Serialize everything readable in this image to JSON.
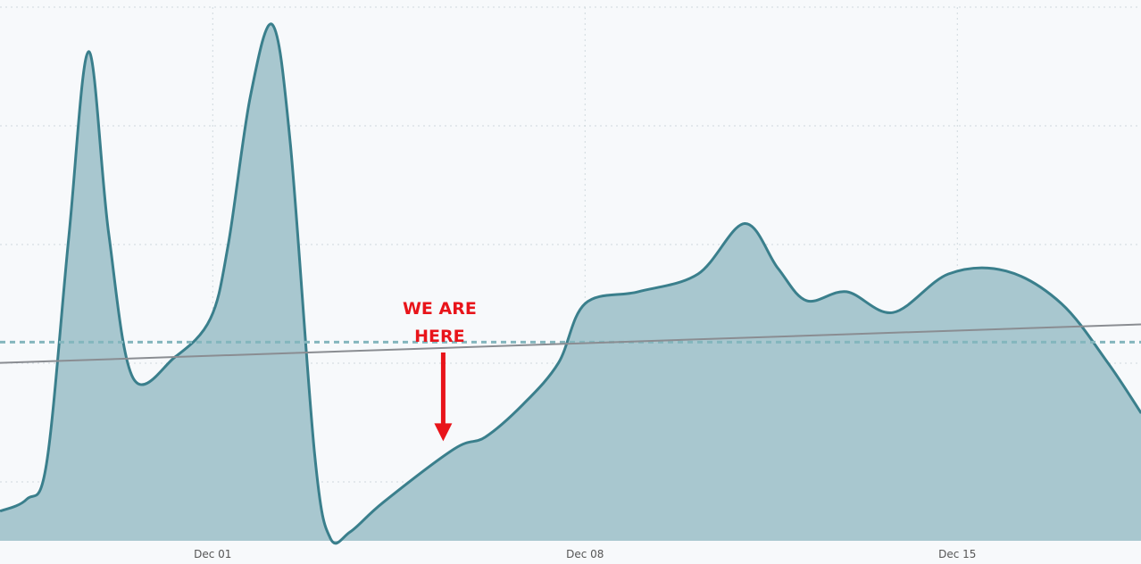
{
  "chart_data": {
    "type": "area",
    "title": "",
    "xlabel": "",
    "ylabel": "",
    "x_tick_labels": [
      "Dec 01",
      "Dec 08",
      "Dec 15"
    ],
    "y_tick_labels": [],
    "grid": true,
    "legend": "none",
    "series": [
      {
        "values": [
          {
            "x": "2019-11-27 00:00",
            "y": 10
          },
          {
            "x": "2019-11-27 12:00",
            "y": 14
          },
          {
            "x": "2019-11-27 21:00",
            "y": 26
          },
          {
            "x": "2019-11-28 07:00",
            "y": 102
          },
          {
            "x": "2019-11-28 16:00",
            "y": 165
          },
          {
            "x": "2019-11-29 01:00",
            "y": 104
          },
          {
            "x": "2019-11-29 12:00",
            "y": 55
          },
          {
            "x": "2019-11-30 07:00",
            "y": 62
          },
          {
            "x": "2019-11-30 23:00",
            "y": 75
          },
          {
            "x": "2019-12-01 07:00",
            "y": 100
          },
          {
            "x": "2019-12-01 17:00",
            "y": 150
          },
          {
            "x": "2019-12-02 03:00",
            "y": 174
          },
          {
            "x": "2019-12-02 11:00",
            "y": 134
          },
          {
            "x": "2019-12-02 22:00",
            "y": 29
          },
          {
            "x": "2019-12-03 05:00",
            "y": 1
          },
          {
            "x": "2019-12-03 14:00",
            "y": 3
          },
          {
            "x": "2019-12-04 05:00",
            "y": 13
          },
          {
            "x": "2019-12-05 13:00",
            "y": 31
          },
          {
            "x": "2019-12-06 03:00",
            "y": 35
          },
          {
            "x": "2019-12-06 20:00",
            "y": 46
          },
          {
            "x": "2019-12-07 12:00",
            "y": 60
          },
          {
            "x": "2019-12-08 00:00",
            "y": 80
          },
          {
            "x": "2019-12-09 00:00",
            "y": 84
          },
          {
            "x": "2019-12-10 03:00",
            "y": 90
          },
          {
            "x": "2019-12-11 00:00",
            "y": 107
          },
          {
            "x": "2019-12-11 15:00",
            "y": 92
          },
          {
            "x": "2019-12-12 04:00",
            "y": 81
          },
          {
            "x": "2019-12-12 22:00",
            "y": 84
          },
          {
            "x": "2019-12-13 19:00",
            "y": 77
          },
          {
            "x": "2019-12-14 20:00",
            "y": 90
          },
          {
            "x": "2019-12-15 22:00",
            "y": 91
          },
          {
            "x": "2019-12-16 23:00",
            "y": 80
          },
          {
            "x": "2019-12-17 20:00",
            "y": 60
          },
          {
            "x": "2019-12-18 11:00",
            "y": 43
          }
        ]
      }
    ],
    "average_line": {
      "y": 67
    },
    "trend_line": {
      "y_start": 60,
      "y_end": 73
    },
    "annotations": [
      {
        "lines": [
          "WE ARE",
          "HERE"
        ],
        "points_to": {
          "x": "2019-12-05 08:00",
          "y": 33
        }
      }
    ]
  },
  "colors": {
    "area_fill": "#a8c7cf",
    "area_stroke": "#3a7f8c",
    "average_line": "#84b6bd",
    "trend_line": "#8a8d92",
    "grid": "#cfd8dd",
    "annotation": "#e8141a",
    "tick_label": "#555555"
  }
}
